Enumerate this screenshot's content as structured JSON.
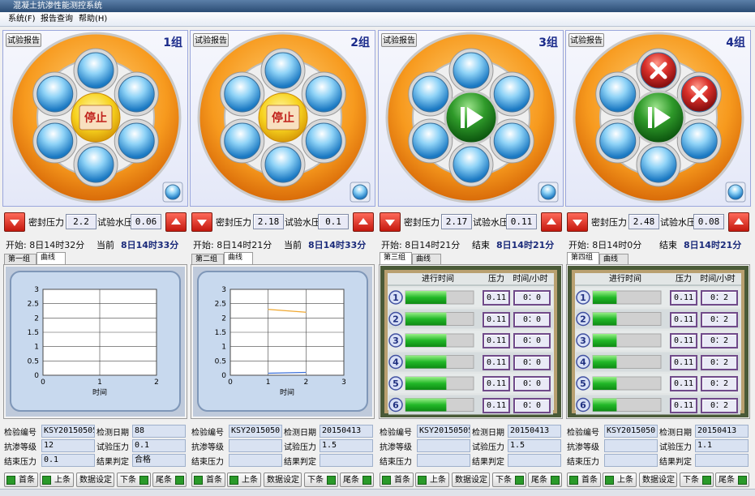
{
  "window_title": "混凝土抗渗性能测控系统",
  "menu": [
    "系统(F)",
    "报告查询",
    "帮助(H)"
  ],
  "groups": [
    {
      "report_button": "试验报告",
      "label": "1组",
      "center_button": "停止",
      "seal_pressure_label": "密封压力",
      "seal_pressure": 2.2,
      "water_pressure_label": "试验水压",
      "water_pressure": 0.06,
      "start": "开始: 8日14时32分",
      "end_label": "当前",
      "end_time": "8日14时33分",
      "tabs": [
        "第一组",
        "曲线"
      ],
      "active_tab": 1,
      "chart": {
        "type": "line",
        "xlabel": "时间",
        "xlim": [
          0,
          2
        ],
        "xticks": [
          0,
          1,
          2
        ],
        "ylim": [
          0,
          3
        ],
        "yticks": [
          0,
          0.5,
          1,
          1.5,
          2,
          2.5,
          3
        ],
        "grid": true,
        "series": []
      },
      "fields": [
        {
          "label": "检验编号",
          "value": "KSY20150505"
        },
        {
          "label": "检测日期",
          "value": "88"
        },
        {
          "label": "抗渗等级",
          "value": "12"
        },
        {
          "label": "试验压力",
          "value": "0.1"
        },
        {
          "label": "结束压力",
          "value": "0.1"
        },
        {
          "label": "结果判定",
          "value": "合格"
        }
      ],
      "nav": [
        "首条",
        "上条",
        "数据设定",
        "下条",
        "尾条"
      ]
    },
    {
      "report_button": "试验报告",
      "label": "2组",
      "center_button": "停止",
      "seal_pressure_label": "密封压力",
      "seal_pressure": 2.18,
      "water_pressure_label": "试验水压",
      "water_pressure": 0.1,
      "start": "开始: 8日14时21分",
      "end_label": "当前",
      "end_time": "8日14时33分",
      "tabs": [
        "第二组",
        "曲线"
      ],
      "active_tab": 1,
      "chart": {
        "type": "line",
        "xlabel": "时间",
        "xlim": [
          0,
          3
        ],
        "xticks": [
          0,
          1,
          2,
          3
        ],
        "ylim": [
          0,
          3
        ],
        "yticks": [
          0,
          0.5,
          1,
          1.5,
          2,
          2.5,
          3
        ],
        "grid": true,
        "series": [
          {
            "color": "#f0a830",
            "x": [
              1,
              2
            ],
            "values": [
              2.3,
              2.2
            ]
          },
          {
            "color": "#3a6fd8",
            "x": [
              1,
              2
            ],
            "values": [
              0.07,
              0.1
            ]
          }
        ]
      },
      "fields": [
        {
          "label": "检验编号",
          "value": "KSY2015050"
        },
        {
          "label": "检测日期",
          "value": "20150413"
        },
        {
          "label": "抗渗等级"
        },
        {
          "label": "试验压力",
          "value": "1.5"
        },
        {
          "label": "结束压力"
        },
        {
          "label": "结果判定"
        }
      ],
      "nav": [
        "首条",
        "上条",
        "数据设定",
        "下条",
        "尾条"
      ]
    },
    {
      "report_button": "试验报告",
      "label": "3组",
      "seal_pressure_label": "密封压力",
      "seal_pressure": 2.17,
      "water_pressure_label": "试验水压",
      "water_pressure": 0.11,
      "start": "开始: 8日14时21分",
      "end_label": "结束",
      "end_time": "8日14时21分",
      "tabs": [
        "第三组",
        "曲线"
      ],
      "active_tab": 0,
      "table": {
        "headers": [
          "进行时间",
          "压力",
          "时间/小时"
        ],
        "rows": [
          {
            "no": 1,
            "progress": 60,
            "pressure": 0.11,
            "time": "0：0"
          },
          {
            "no": 2,
            "progress": 60,
            "pressure": 0.11,
            "time": "0：0"
          },
          {
            "no": 3,
            "progress": 60,
            "pressure": 0.11,
            "time": "0：0"
          },
          {
            "no": 4,
            "progress": 60,
            "pressure": 0.11,
            "time": "0：0"
          },
          {
            "no": 5,
            "progress": 60,
            "pressure": 0.11,
            "time": "0：0"
          },
          {
            "no": 6,
            "progress": 60,
            "pressure": 0.11,
            "time": "0：0"
          }
        ]
      },
      "fields": [
        {
          "label": "检验编号",
          "value": "KSY20150505"
        },
        {
          "label": "检测日期",
          "value": "20150413"
        },
        {
          "label": "抗渗等级"
        },
        {
          "label": "试验压力",
          "value": "1.5"
        },
        {
          "label": "结束压力"
        },
        {
          "label": "结果判定"
        }
      ],
      "nav": [
        "首条",
        "上条",
        "数据设定",
        "下条",
        "尾条"
      ]
    },
    {
      "report_button": "试验报告",
      "label": "4组",
      "seal_pressure_label": "密封压力",
      "seal_pressure": 2.48,
      "water_pressure_label": "试验水压",
      "water_pressure": 0.08,
      "start": "开始: 8日14时0分",
      "end_label": "结束",
      "end_time": "8日14时21分",
      "tabs": [
        "第四组",
        "曲线"
      ],
      "active_tab": 0,
      "table": {
        "headers": [
          "进行时间",
          "压力",
          "时间/小时"
        ],
        "rows": [
          {
            "no": 1,
            "progress": 35,
            "pressure": 0.11,
            "time": "0：2"
          },
          {
            "no": 2,
            "progress": 35,
            "pressure": 0.11,
            "time": "0：2"
          },
          {
            "no": 3,
            "progress": 35,
            "pressure": 0.11,
            "time": "0：2"
          },
          {
            "no": 4,
            "progress": 35,
            "pressure": 0.11,
            "time": "0：2"
          },
          {
            "no": 5,
            "progress": 35,
            "pressure": 0.11,
            "time": "0：2"
          },
          {
            "no": 6,
            "progress": 35,
            "pressure": 0.11,
            "time": "0：2"
          }
        ]
      },
      "fields": [
        {
          "label": "检验编号",
          "value": "KSY2015050"
        },
        {
          "label": "检测日期",
          "value": "20150413"
        },
        {
          "label": "抗渗等级"
        },
        {
          "label": "试验压力",
          "value": "1.1"
        },
        {
          "label": "结束压力"
        },
        {
          "label": "结果判定"
        }
      ],
      "nav": [
        "首条",
        "上条",
        "数据设定",
        "下条",
        "尾条"
      ]
    }
  ]
}
